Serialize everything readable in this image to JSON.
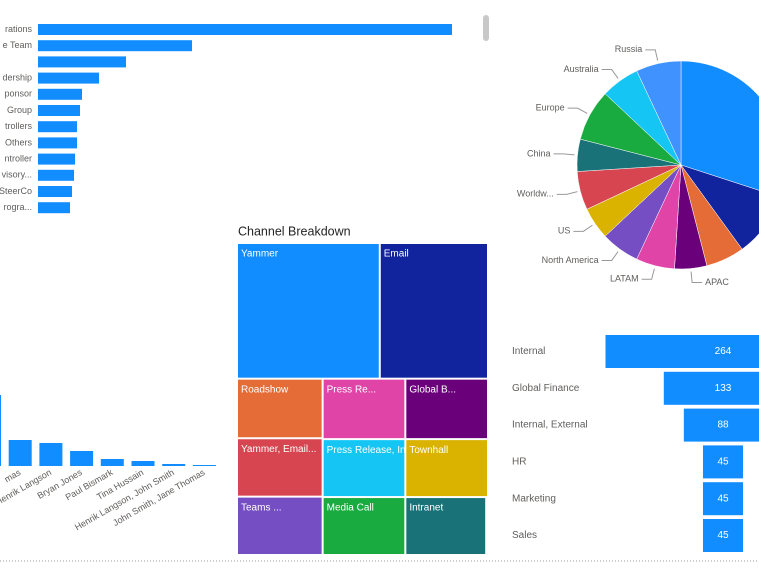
{
  "chart_data": [
    {
      "type": "hbar",
      "color": "#118DFF",
      "categories": [
        "rations",
        "e Team",
        null,
        "dership",
        "ponsor",
        "Group",
        "trollers",
        "Others",
        "ntroller",
        "visory...",
        "SteerCo",
        "rogra..."
      ],
      "values": [
        414,
        154,
        88,
        61,
        44,
        42,
        39,
        39,
        37,
        36,
        34,
        32
      ]
    },
    {
      "type": "pie",
      "categories": [
        null,
        null,
        null,
        "APAC",
        "LATAM",
        "North America",
        "US",
        "Worldw...",
        "China",
        "Europe",
        "Australia",
        "Russia"
      ],
      "values": [
        30,
        10,
        6,
        5,
        6,
        6,
        5,
        6,
        5,
        8,
        6,
        7
      ],
      "colors": [
        "#118DFF",
        "#12239E",
        "#E66C37",
        "#6B007B",
        "#E044A7",
        "#744EC2",
        "#D9B300",
        "#D64550",
        "#197278",
        "#1AAB40",
        "#15C6F4",
        "#4092FF"
      ]
    },
    {
      "type": "column",
      "color": "#118DFF",
      "categories": [
        null,
        "mas",
        "Henrik Langson",
        "Bryan Jones",
        "Paul Bismark",
        "Tina Hussain",
        "Henrik Langson, John Smith",
        "John Smith, Jane Thomas"
      ],
      "values": [
        71,
        26,
        23,
        15,
        7,
        5,
        2,
        1
      ]
    },
    {
      "type": "treemap",
      "title": "Channel Breakdown",
      "categories": [
        "Yammer",
        "Email",
        "Roadshow",
        "Yammer, Email...",
        "Teams ...",
        "Press Re...",
        "Global B...",
        "Press Release, Intran...",
        "Media Call",
        "Townhall",
        "Intranet",
        null
      ],
      "values": [
        186,
        141,
        49,
        48,
        48,
        48,
        48,
        46,
        46,
        46,
        45,
        1
      ],
      "colors": [
        "#118DFF",
        "#12239E",
        "#E66C37",
        "#D64550",
        "#744EC2",
        "#E044A7",
        "#6B007B",
        "#15C6F4",
        "#1AAB40",
        "#D9B300",
        "#197278",
        "#8AD4EB"
      ]
    },
    {
      "type": "funnel",
      "color": "#118DFF",
      "categories": [
        "Internal",
        "Global Finance",
        "Internal, External",
        "HR",
        "Marketing",
        "Sales"
      ],
      "values": [
        264,
        133,
        88,
        45,
        45,
        45
      ]
    }
  ]
}
